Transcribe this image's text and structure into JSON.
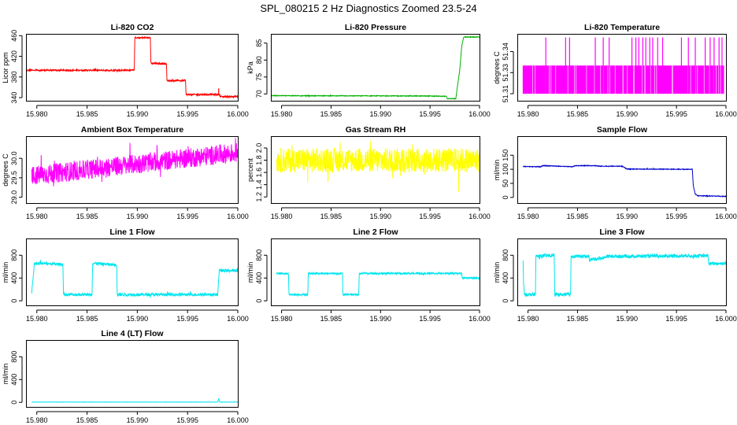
{
  "title": "SPL_080215  2 Hz Diagnostics Zoomed 23.5-24",
  "chart_data": [
    {
      "type": "line",
      "title": "Li-820 CO2",
      "ylabel": "Licor ppm",
      "color": "#ff0000",
      "xlim": [
        15.979,
        16.0
      ],
      "ylim": [
        334,
        462
      ],
      "xticks": [
        15.98,
        15.985,
        15.99,
        15.995,
        16.0
      ],
      "xtick_labels": [
        "15.980",
        "15.985",
        "15.990",
        "15.995",
        "16.000"
      ],
      "yticks": [
        340,
        380,
        420,
        460
      ],
      "ytick_labels": [
        "340",
        "380",
        "420",
        "460"
      ],
      "series": [
        {
          "x": [
            15.979,
            15.9897,
            15.98975,
            15.9913,
            15.99135,
            15.9929,
            15.99295,
            15.9948,
            15.99485,
            15.9982,
            15.99825,
            16.0
          ],
          "y": [
            393,
            393,
            456,
            456,
            406,
            406,
            373,
            373,
            346,
            346,
            342,
            342
          ],
          "noise": 1.5,
          "spikes": [
            {
              "x": 15.9981,
              "y": 358
            }
          ]
        }
      ]
    },
    {
      "type": "line",
      "title": "Li-820 Pressure",
      "ylabel": "kPa",
      "color": "#00b000",
      "xlim": [
        15.979,
        16.0
      ],
      "ylim": [
        68,
        87.5
      ],
      "xticks": [
        15.98,
        15.985,
        15.99,
        15.995,
        16.0
      ],
      "xtick_labels": [
        "15.980",
        "15.985",
        "15.990",
        "15.995",
        "16.000"
      ],
      "yticks": [
        70,
        75,
        80,
        85
      ],
      "ytick_labels": [
        "70",
        "75",
        "80",
        "85"
      ],
      "series": [
        {
          "x": [
            15.979,
            15.9945,
            15.99455,
            15.99665,
            15.99675,
            15.9976,
            15.998,
            15.9982,
            15.9984,
            16.0
          ],
          "y": [
            69.5,
            69.4,
            69.4,
            69.3,
            68.6,
            68.6,
            77,
            84,
            86.8,
            86.8
          ],
          "noise": 0.1
        }
      ]
    },
    {
      "type": "line",
      "title": "Li-820 Temperature",
      "ylabel": "degrees C",
      "color": "#ff00ff",
      "xlim": [
        15.979,
        16.0
      ],
      "ylim": [
        51.305,
        51.352
      ],
      "xticks": [
        15.98,
        15.985,
        15.99,
        15.995,
        16.0
      ],
      "xtick_labels": [
        "15.980",
        "15.985",
        "15.990",
        "15.995",
        "16.000"
      ],
      "yticks": [
        51.31,
        51.325,
        51.34
      ],
      "ytick_labels": [
        "51.31",
        "51.33",
        "51.34"
      ],
      "series": [
        {
          "levels": [
            51.31,
            51.33
          ],
          "high": 51.35,
          "x_start": 15.9795,
          "x_end": 15.9998,
          "spikes_x": [
            15.9818,
            15.9838,
            15.9842,
            15.9868,
            15.9876,
            15.9882,
            15.9905,
            15.9909,
            15.9912,
            15.9916,
            15.9919,
            15.9923,
            15.9926,
            15.9931,
            15.9936,
            15.9955,
            15.9962,
            15.9969,
            15.9979,
            15.9984,
            15.9988,
            15.9993,
            15.9996
          ]
        }
      ]
    },
    {
      "type": "line",
      "title": "Ambient Box Temperature",
      "ylabel": "degrees C",
      "color": "#ff00ff",
      "xlim": [
        15.979,
        16.0
      ],
      "ylim": [
        28.85,
        30.55
      ],
      "xticks": [
        15.98,
        15.985,
        15.99,
        15.995,
        16.0
      ],
      "xtick_labels": [
        "15.980",
        "15.985",
        "15.990",
        "15.995",
        "16.000"
      ],
      "yticks": [
        29.0,
        29.5,
        30.0
      ],
      "ytick_labels": [
        "29.0",
        "29.5",
        "30.0"
      ],
      "series": [
        {
          "x": [
            15.9795,
            16.0
          ],
          "y": [
            29.55,
            30.15
          ],
          "noise": 0.25
        }
      ]
    },
    {
      "type": "line",
      "title": "Gas Stream RH",
      "ylabel": "percent",
      "color": "#ffff00",
      "xlim": [
        15.979,
        16.0
      ],
      "ylim": [
        1.1,
        2.18
      ],
      "xticks": [
        15.98,
        15.985,
        15.99,
        15.995,
        16.0
      ],
      "xtick_labels": [
        "15.980",
        "15.985",
        "15.990",
        "15.995",
        "16.000"
      ],
      "yticks": [
        1.2,
        1.4,
        1.6,
        1.8,
        2.0
      ],
      "ytick_labels": [
        "1.2",
        "1.4",
        "1.6",
        "1.8",
        "2.0"
      ],
      "series": [
        {
          "x": [
            15.9795,
            16.0
          ],
          "y": [
            1.8,
            1.8
          ],
          "noise": 0.2
        }
      ]
    },
    {
      "type": "line",
      "title": "Sample Flow",
      "ylabel": "ml/min",
      "color": "#0000cc",
      "xlim": [
        15.979,
        16.0
      ],
      "ylim": [
        -20,
        215
      ],
      "xticks": [
        15.98,
        15.985,
        15.99,
        15.995,
        16.0
      ],
      "xtick_labels": [
        "15.980",
        "15.985",
        "15.990",
        "15.995",
        "16.000"
      ],
      "yticks": [
        0,
        50,
        100,
        150
      ],
      "ytick_labels": [
        "0",
        "50",
        "100",
        "150"
      ],
      "series": [
        {
          "x": [
            15.9795,
            15.9813,
            15.9815,
            15.9845,
            15.9848,
            15.9868,
            15.9872,
            15.9895,
            15.99,
            15.9966,
            15.9967,
            15.9969,
            15.99715,
            16.0
          ],
          "y": [
            110,
            109,
            113,
            109,
            113,
            113,
            111,
            111,
            101,
            100,
            40,
            12,
            6,
            4
          ],
          "noise": 1.2
        }
      ]
    },
    {
      "type": "line",
      "title": "Line 1 Flow",
      "ylabel": "ml/min",
      "color": "#00e5ee",
      "xlim": [
        15.979,
        16.0
      ],
      "ylim": [
        -80,
        1080
      ],
      "xticks": [
        15.98,
        15.985,
        15.99,
        15.995,
        16.0
      ],
      "xtick_labels": [
        "15.980",
        "15.985",
        "15.990",
        "15.995",
        "16.000"
      ],
      "yticks": [
        0,
        400,
        800
      ],
      "ytick_labels": [
        "0",
        "400",
        "800"
      ],
      "series": [
        {
          "x": [
            15.9795,
            15.97975,
            15.9826,
            15.98265,
            15.9855,
            15.98555,
            15.98795,
            15.988,
            15.998,
            15.99815,
            16.0
          ],
          "y": [
            150,
            660,
            640,
            110,
            110,
            660,
            630,
            110,
            110,
            530,
            530
          ],
          "noise": 25
        }
      ]
    },
    {
      "type": "line",
      "title": "Line 2 Flow",
      "ylabel": "ml/min",
      "color": "#00e5ee",
      "xlim": [
        15.979,
        16.0
      ],
      "ylim": [
        -80,
        1080
      ],
      "xticks": [
        15.98,
        15.985,
        15.99,
        15.995,
        16.0
      ],
      "xtick_labels": [
        "15.980",
        "15.985",
        "15.990",
        "15.995",
        "16.000"
      ],
      "yticks": [
        0,
        400,
        800
      ],
      "ytick_labels": [
        "0",
        "400",
        "800"
      ],
      "series": [
        {
          "x": [
            15.9795,
            15.9807,
            15.98075,
            15.98265,
            15.9827,
            15.98615,
            15.9862,
            15.9878,
            15.98785,
            15.9982,
            15.99825,
            16.0
          ],
          "y": [
            480,
            480,
            110,
            110,
            480,
            480,
            110,
            110,
            480,
            480,
            400,
            400
          ],
          "noise": 15
        }
      ]
    },
    {
      "type": "line",
      "title": "Line 3 Flow",
      "ylabel": "ml/min",
      "color": "#00e5ee",
      "xlim": [
        15.979,
        16.0
      ],
      "ylim": [
        -80,
        1080
      ],
      "xticks": [
        15.98,
        15.985,
        15.99,
        15.995,
        16.0
      ],
      "xtick_labels": [
        "15.980",
        "15.985",
        "15.990",
        "15.995",
        "16.000"
      ],
      "yticks": [
        0,
        400,
        800
      ],
      "ytick_labels": [
        "0",
        "400",
        "800"
      ],
      "series": [
        {
          "x": [
            15.9795,
            15.97955,
            15.97965,
            15.98075,
            15.9808,
            15.98265,
            15.9827,
            15.9843,
            15.98435,
            15.98615,
            15.9862,
            15.9878,
            15.98785,
            15.9982,
            15.99825,
            16.0
          ],
          "y": [
            700,
            320,
            110,
            110,
            780,
            800,
            110,
            110,
            780,
            780,
            720,
            760,
            780,
            790,
            650,
            660
          ],
          "noise": 30
        }
      ]
    },
    {
      "type": "line",
      "title": "Line 4 (LT) Flow",
      "ylabel": "ml/min",
      "color": "#00e5ee",
      "xlim": [
        15.979,
        16.0
      ],
      "ylim": [
        -80,
        1080
      ],
      "xticks": [
        15.98,
        15.985,
        15.99,
        15.995,
        16.0
      ],
      "xtick_labels": [
        "15.980",
        "15.985",
        "15.990",
        "15.995",
        "16.000"
      ],
      "yticks": [
        0,
        400,
        800
      ],
      "ytick_labels": [
        "0",
        "400",
        "800"
      ],
      "series": [
        {
          "x": [
            15.9795,
            15.998,
            15.9981,
            15.9982,
            16.0
          ],
          "y": [
            5,
            5,
            70,
            5,
            5
          ],
          "noise": 2
        }
      ]
    }
  ]
}
